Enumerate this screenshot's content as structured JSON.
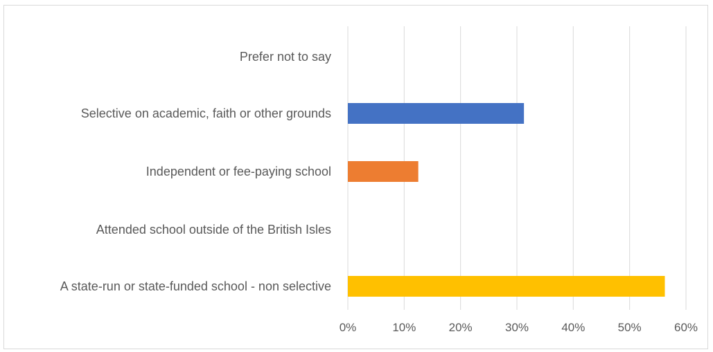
{
  "chart_data": {
    "type": "bar",
    "orientation": "horizontal",
    "categories": [
      "Prefer not to say",
      "Selective on academic, faith or other grounds",
      "Independent or fee-paying school",
      "Attended school outside of the British Isles",
      "A state-run or state-funded school - non selective"
    ],
    "values": [
      0,
      31.25,
      12.5,
      0,
      56.25
    ],
    "bar_colors": [
      "#7f7f7f",
      "#4472c4",
      "#ed7d31",
      "#a5a5a5",
      "#ffc000"
    ],
    "x_ticks": [
      "0%",
      "10%",
      "20%",
      "30%",
      "40%",
      "50%",
      "60%"
    ],
    "xlim": [
      0,
      60
    ],
    "grid": true,
    "legend": "none"
  }
}
